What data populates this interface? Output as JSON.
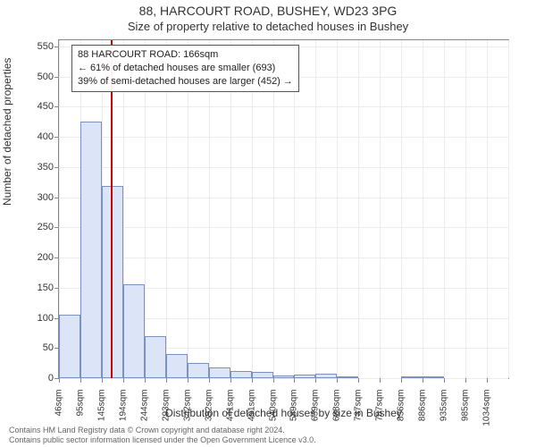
{
  "titles": {
    "main": "88, HARCOURT ROAD, BUSHEY, WD23 3PG",
    "sub": "Size of property relative to detached houses in Bushey"
  },
  "axes": {
    "ylabel": "Number of detached properties",
    "xlabel": "Distribution of detached houses by size in Bushey",
    "ylim_max": 560,
    "ytick_step": 50,
    "ytick_max": 550,
    "xticks": [
      "46sqm",
      "95sqm",
      "145sqm",
      "194sqm",
      "244sqm",
      "293sqm",
      "342sqm",
      "392sqm",
      "441sqm",
      "491sqm",
      "540sqm",
      "589sqm",
      "639sqm",
      "688sqm",
      "737sqm",
      "787sqm",
      "836sqm",
      "886sqm",
      "935sqm",
      "985sqm",
      "1034sqm"
    ]
  },
  "chart": {
    "type": "histogram",
    "bar_fill": "#dbe5f7",
    "bar_stroke": "#7a91c2",
    "grid_color": "#ececec",
    "border_color": "#888888",
    "background": "#ffffff",
    "values": [
      105,
      425,
      318,
      155,
      70,
      40,
      25,
      18,
      12,
      10,
      4,
      6,
      8,
      2,
      0,
      0,
      2,
      2,
      0,
      0,
      0
    ],
    "reference_line": {
      "color": "#cc0000",
      "bin_index": 2,
      "frac_within_bin": 0.42
    }
  },
  "annotation": {
    "lines": [
      "88 HARCOURT ROAD: 166sqm",
      "← 61% of detached houses are smaller (693)",
      "39% of semi-detached houses are larger (452) →"
    ]
  },
  "footer": {
    "line1": "Contains HM Land Registry data © Crown copyright and database right 2024.",
    "line2": "Contains public sector information licensed under the Open Government Licence v3.0."
  }
}
